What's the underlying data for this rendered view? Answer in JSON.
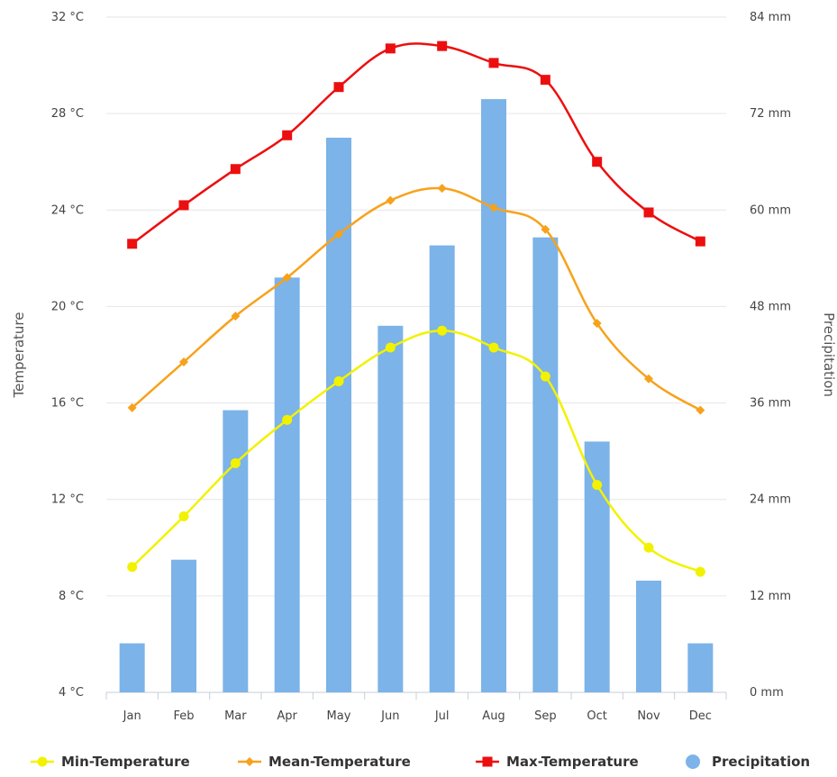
{
  "chart_data": {
    "type": "bar",
    "categories": [
      "Jan",
      "Feb",
      "Mar",
      "Apr",
      "May",
      "Jun",
      "Jul",
      "Aug",
      "Sep",
      "Oct",
      "Nov",
      "Dec"
    ],
    "series": [
      {
        "name": "Min-Temperature",
        "kind": "line",
        "axis": "left",
        "color": "#f2f200",
        "marker": "circle",
        "values": [
          9.2,
          11.3,
          13.5,
          15.3,
          16.9,
          18.3,
          19.0,
          18.3,
          17.1,
          12.6,
          10.0,
          9.0
        ]
      },
      {
        "name": "Mean-Temperature",
        "kind": "line",
        "axis": "left",
        "color": "#f7a21b",
        "marker": "diamond",
        "values": [
          15.8,
          17.7,
          19.6,
          21.2,
          23.0,
          24.4,
          24.9,
          24.1,
          23.2,
          19.3,
          17.0,
          15.7
        ]
      },
      {
        "name": "Max-Temperature",
        "kind": "line",
        "axis": "left",
        "color": "#ec0f0f",
        "marker": "square",
        "values": [
          22.6,
          24.2,
          25.7,
          27.1,
          29.1,
          30.7,
          30.8,
          30.1,
          29.4,
          26.0,
          23.9,
          22.7
        ]
      },
      {
        "name": "Precipitation",
        "kind": "bar",
        "axis": "right",
        "color": "#7cb3e8",
        "values": [
          6.1,
          16.5,
          35.1,
          51.6,
          69.0,
          45.6,
          55.6,
          73.8,
          56.6,
          31.2,
          13.9,
          6.1
        ]
      }
    ],
    "y_left": {
      "label": "Temperature",
      "min": 4,
      "max": 32,
      "ticks": [
        "4 °C",
        "8 °C",
        "12 °C",
        "16 °C",
        "20 °C",
        "24 °C",
        "28 °C",
        "32 °C"
      ]
    },
    "y_right": {
      "label": "Precipitation",
      "min": 0,
      "max": 84,
      "ticks": [
        "0 mm",
        "12 mm",
        "24 mm",
        "36 mm",
        "48 mm",
        "60 mm",
        "72 mm",
        "84 mm"
      ]
    },
    "grid": true,
    "legend_position": "bottom"
  }
}
